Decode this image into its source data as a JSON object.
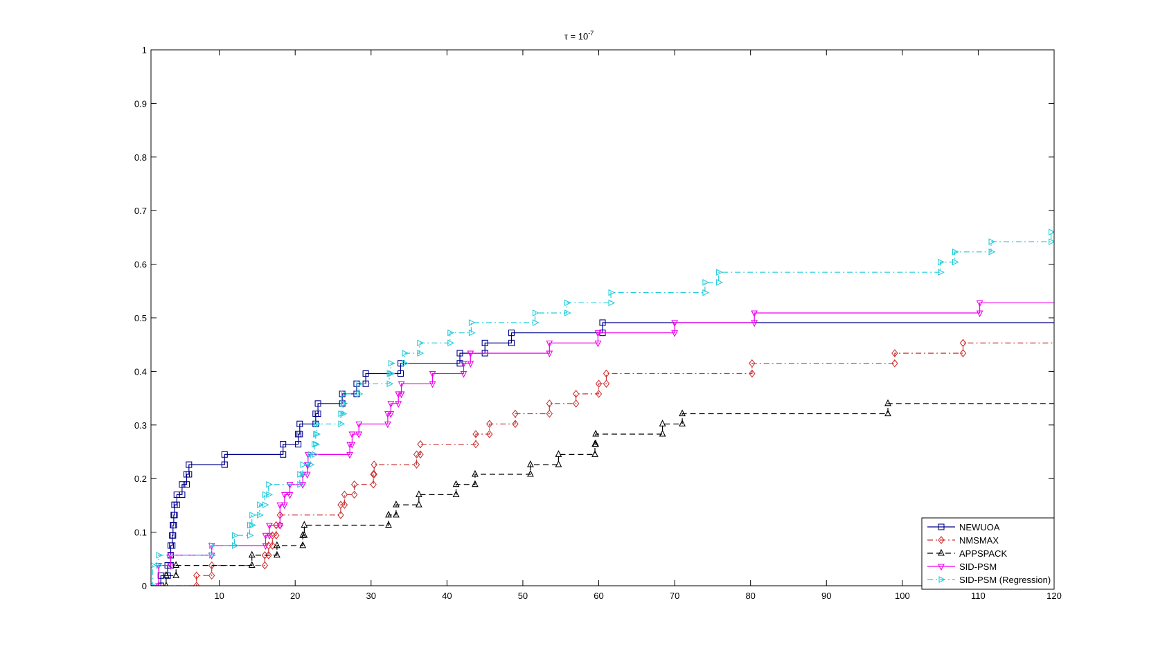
{
  "chart_data": {
    "type": "line",
    "title": "τ = 10",
    "title_exponent": "-7",
    "xlim": [
      1,
      120
    ],
    "ylim": [
      0,
      1
    ],
    "xticks": [
      10,
      20,
      30,
      40,
      50,
      60,
      70,
      80,
      90,
      100,
      110,
      120
    ],
    "yticks": [
      0,
      0.1,
      0.2,
      0.3,
      0.4,
      0.5,
      0.6,
      0.7,
      0.8,
      0.9,
      1
    ],
    "ytick_labels": [
      "0",
      "0.1",
      "0.2",
      "0.3",
      "0.4",
      "0.5",
      "0.6",
      "0.7",
      "0.8",
      "0.9",
      "1"
    ],
    "grid": false,
    "legend_position": "bottom-right",
    "series": [
      {
        "name": "NEWUOA",
        "color": "#00008b",
        "dash": "solid",
        "marker": "square",
        "points": [
          [
            1,
            0
          ],
          [
            2.3,
            0.019
          ],
          [
            3.2,
            0.038
          ],
          [
            3.6,
            0.057
          ],
          [
            3.6,
            0.075
          ],
          [
            3.8,
            0.094
          ],
          [
            3.9,
            0.113
          ],
          [
            4.0,
            0.132
          ],
          [
            4.1,
            0.151
          ],
          [
            4.4,
            0.17
          ],
          [
            5.1,
            0.189
          ],
          [
            5.7,
            0.208
          ],
          [
            6.0,
            0.226
          ],
          [
            10.7,
            0.245
          ],
          [
            18.4,
            0.264
          ],
          [
            20.4,
            0.283
          ],
          [
            20.6,
            0.302
          ],
          [
            22.7,
            0.321
          ],
          [
            23.0,
            0.34
          ],
          [
            26.2,
            0.358
          ],
          [
            28.1,
            0.377
          ],
          [
            29.3,
            0.396
          ],
          [
            33.9,
            0.415
          ],
          [
            41.7,
            0.434
          ],
          [
            45.0,
            0.453
          ],
          [
            48.5,
            0.472
          ],
          [
            60.5,
            0.491
          ],
          [
            120,
            0.491
          ]
        ]
      },
      {
        "name": "NMSMAX",
        "color": "#cc3333",
        "dash": "dashdot",
        "marker": "diamond",
        "points": [
          [
            1,
            0
          ],
          [
            7.0,
            0.019
          ],
          [
            9.0,
            0.038
          ],
          [
            16.0,
            0.057
          ],
          [
            16.5,
            0.075
          ],
          [
            17.0,
            0.094
          ],
          [
            17.5,
            0.113
          ],
          [
            18.0,
            0.132
          ],
          [
            26.0,
            0.151
          ],
          [
            26.5,
            0.17
          ],
          [
            27.8,
            0.189
          ],
          [
            30.3,
            0.208
          ],
          [
            30.4,
            0.226
          ],
          [
            36.0,
            0.245
          ],
          [
            36.5,
            0.264
          ],
          [
            43.8,
            0.283
          ],
          [
            45.6,
            0.302
          ],
          [
            49.0,
            0.321
          ],
          [
            53.5,
            0.34
          ],
          [
            57.0,
            0.358
          ],
          [
            60.0,
            0.377
          ],
          [
            61.0,
            0.396
          ],
          [
            80.2,
            0.415
          ],
          [
            99.0,
            0.434
          ],
          [
            108.0,
            0.453
          ],
          [
            120,
            0.453
          ]
        ]
      },
      {
        "name": "APPSPACK",
        "color": "#000000",
        "dash": "dash",
        "marker": "triangle-up",
        "points": [
          [
            1,
            0
          ],
          [
            3.0,
            0.019
          ],
          [
            4.3,
            0.038
          ],
          [
            14.3,
            0.057
          ],
          [
            17.6,
            0.075
          ],
          [
            21.0,
            0.094
          ],
          [
            21.2,
            0.113
          ],
          [
            32.3,
            0.132
          ],
          [
            33.3,
            0.151
          ],
          [
            36.3,
            0.17
          ],
          [
            41.2,
            0.189
          ],
          [
            43.7,
            0.208
          ],
          [
            51.0,
            0.226
          ],
          [
            54.7,
            0.245
          ],
          [
            59.5,
            0.264
          ],
          [
            59.6,
            0.283
          ],
          [
            68.4,
            0.302
          ],
          [
            71.0,
            0.321
          ],
          [
            98.1,
            0.34
          ],
          [
            120,
            0.34
          ]
        ]
      },
      {
        "name": "SID-PSM",
        "color": "#ee00ee",
        "dash": "solid",
        "marker": "triangle-down",
        "points": [
          [
            1,
            0
          ],
          [
            2.0,
            0.038
          ],
          [
            3.6,
            0.057
          ],
          [
            9.0,
            0.075
          ],
          [
            16.1,
            0.094
          ],
          [
            16.6,
            0.113
          ],
          [
            18.0,
            0.151
          ],
          [
            18.6,
            0.17
          ],
          [
            19.3,
            0.189
          ],
          [
            21.0,
            0.208
          ],
          [
            21.6,
            0.226
          ],
          [
            21.7,
            0.245
          ],
          [
            27.2,
            0.264
          ],
          [
            27.5,
            0.283
          ],
          [
            28.4,
            0.302
          ],
          [
            32.2,
            0.321
          ],
          [
            32.6,
            0.34
          ],
          [
            33.6,
            0.358
          ],
          [
            34.0,
            0.377
          ],
          [
            38.1,
            0.396
          ],
          [
            42.2,
            0.415
          ],
          [
            43.1,
            0.434
          ],
          [
            53.5,
            0.453
          ],
          [
            59.9,
            0.472
          ],
          [
            70.0,
            0.491
          ],
          [
            80.5,
            0.509
          ],
          [
            110.2,
            0.528
          ],
          [
            120,
            0.528
          ]
        ]
      },
      {
        "name": "SID-PSM (Regression)",
        "color": "#22ccdd",
        "dash": "dashdot",
        "marker": "triangle-right",
        "points": [
          [
            1,
            0
          ],
          [
            1.2,
            0.038
          ],
          [
            2.0,
            0.057
          ],
          [
            9.0,
            0.075
          ],
          [
            12.0,
            0.094
          ],
          [
            14.0,
            0.113
          ],
          [
            14.3,
            0.132
          ],
          [
            15.3,
            0.151
          ],
          [
            16.0,
            0.17
          ],
          [
            16.5,
            0.189
          ],
          [
            20.6,
            0.208
          ],
          [
            21.0,
            0.226
          ],
          [
            22.0,
            0.245
          ],
          [
            22.5,
            0.264
          ],
          [
            22.7,
            0.283
          ],
          [
            22.8,
            0.302
          ],
          [
            26.0,
            0.321
          ],
          [
            26.3,
            0.34
          ],
          [
            26.4,
            0.358
          ],
          [
            28.4,
            0.377
          ],
          [
            32.4,
            0.396
          ],
          [
            32.6,
            0.415
          ],
          [
            34.4,
            0.434
          ],
          [
            36.4,
            0.453
          ],
          [
            40.4,
            0.472
          ],
          [
            43.2,
            0.491
          ],
          [
            51.6,
            0.509
          ],
          [
            55.8,
            0.528
          ],
          [
            61.6,
            0.547
          ],
          [
            74.0,
            0.566
          ],
          [
            75.8,
            0.585
          ],
          [
            105.0,
            0.604
          ],
          [
            106.9,
            0.623
          ],
          [
            111.7,
            0.642
          ],
          [
            119.6,
            0.66
          ],
          [
            120,
            0.66
          ]
        ]
      }
    ]
  }
}
